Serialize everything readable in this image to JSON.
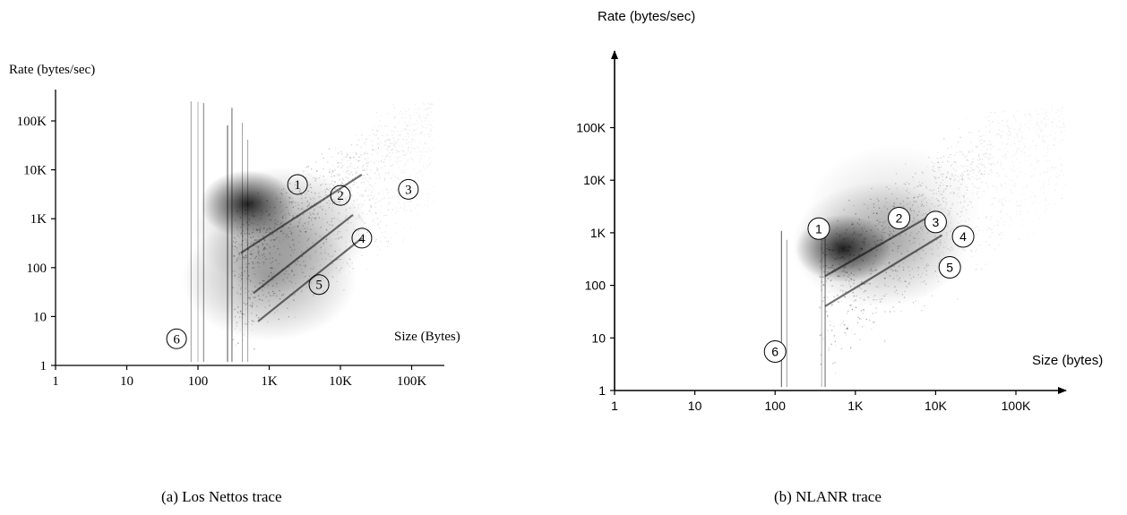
{
  "chart_data": [
    {
      "type": "scatter",
      "scale": "log-log",
      "ylabel": "Rate (bytes/sec)",
      "xlabel": "Size (Bytes)",
      "xlim": [
        1,
        400000
      ],
      "ylim": [
        1,
        400000
      ],
      "x_ticks": [
        1,
        10,
        100,
        1000,
        10000,
        100000
      ],
      "x_tick_labels": [
        "1",
        "10",
        "100",
        "1K",
        "10K",
        "100K"
      ],
      "y_ticks": [
        1,
        10,
        100,
        1000,
        10000,
        100000
      ],
      "y_tick_labels": [
        "1",
        "10",
        "100",
        "1K",
        "10K",
        "100K"
      ],
      "caption": "(a) Los Nettos trace",
      "annotations": [
        {
          "label": "1",
          "x": 2500,
          "y": 5000
        },
        {
          "label": "2",
          "x": 10000,
          "y": 3000
        },
        {
          "label": "3",
          "x": 90000,
          "y": 4000
        },
        {
          "label": "4",
          "x": 20000,
          "y": 400
        },
        {
          "label": "5",
          "x": 5000,
          "y": 45
        },
        {
          "label": "6",
          "x": 50,
          "y": 3.5
        }
      ],
      "clusters": [
        {
          "x": 500,
          "y": 2000,
          "density": "high"
        },
        {
          "x": 1500,
          "y": 600,
          "density": "medium"
        },
        {
          "x": 1000,
          "y": 60,
          "density": "medium"
        }
      ]
    },
    {
      "type": "scatter",
      "scale": "log-log",
      "ylabel": "Rate (bytes/sec)",
      "xlabel": "Size (bytes)",
      "xlim": [
        1,
        600000
      ],
      "ylim": [
        1,
        3000000
      ],
      "x_ticks": [
        1,
        10,
        100,
        1000,
        10000,
        100000
      ],
      "x_tick_labels": [
        "1",
        "10",
        "100",
        "1K",
        "10K",
        "100K"
      ],
      "y_ticks": [
        1,
        10,
        100,
        1000,
        10000,
        100000
      ],
      "y_tick_labels": [
        "1",
        "10",
        "100",
        "1K",
        "10K",
        "100K"
      ],
      "caption": "(b) NLANR trace",
      "annotations": [
        {
          "label": "1",
          "x": 350,
          "y": 1200
        },
        {
          "label": "2",
          "x": 3500,
          "y": 1900
        },
        {
          "label": "3",
          "x": 10000,
          "y": 1600
        },
        {
          "label": "4",
          "x": 22000,
          "y": 850
        },
        {
          "label": "5",
          "x": 15000,
          "y": 220
        },
        {
          "label": "6",
          "x": 100,
          "y": 5.5
        }
      ],
      "clusters": [
        {
          "x": 700,
          "y": 500,
          "density": "high"
        },
        {
          "x": 2000,
          "y": 600,
          "density": "medium"
        },
        {
          "x": 3000,
          "y": 3000,
          "density": "low"
        }
      ]
    }
  ]
}
